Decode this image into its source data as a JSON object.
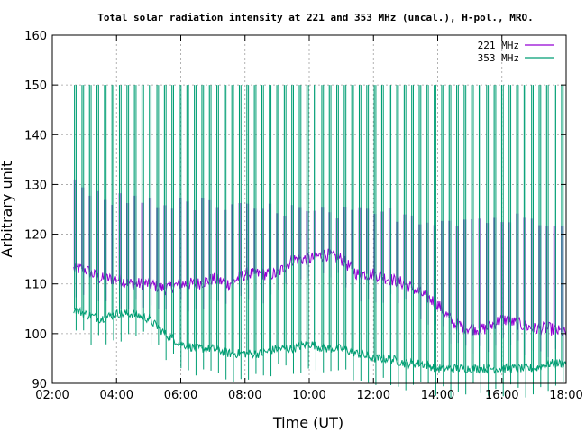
{
  "chart_data": {
    "type": "line",
    "title": "Total solar radiation intensity at 221 and 353 MHz (uncal.), H-pol., MRO.",
    "xlabel": "Time (UT)",
    "ylabel": "Arbitrary unit",
    "xlim": [
      "02:00",
      "18:00"
    ],
    "ylim": [
      90,
      160
    ],
    "x_ticks": [
      "02:00",
      "04:00",
      "06:00",
      "08:00",
      "10:00",
      "12:00",
      "14:00",
      "16:00",
      "18:00"
    ],
    "y_ticks": [
      90,
      100,
      110,
      120,
      130,
      140,
      150,
      160
    ],
    "grid": true,
    "legend_position": "top-right",
    "series": [
      {
        "name": "221 MHz",
        "color": "#9400d3",
        "x": [
          "02:40",
          "03:00",
          "03:30",
          "04:00",
          "04:30",
          "05:00",
          "05:30",
          "06:00",
          "06:30",
          "07:00",
          "07:30",
          "08:00",
          "08:30",
          "09:00",
          "09:30",
          "10:00",
          "10:30",
          "11:00",
          "11:30",
          "12:00",
          "12:30",
          "13:00",
          "13:30",
          "14:00",
          "14:30",
          "15:00",
          "15:30",
          "16:00",
          "16:30",
          "17:00",
          "17:30",
          "18:00"
        ],
        "y": [
          113,
          113,
          111,
          111,
          110,
          110,
          109,
          110,
          110,
          111,
          110,
          112,
          112,
          112,
          115,
          115,
          116,
          115,
          112,
          112,
          111,
          110,
          108,
          106,
          102,
          101,
          101,
          103,
          102,
          101,
          101,
          100
        ],
        "burst_peak": 131,
        "burst_level": [
          129,
          128,
          127,
          127,
          127,
          127,
          126,
          126,
          126,
          126,
          125,
          125,
          125,
          125,
          125,
          124,
          124,
          124,
          124,
          124,
          124,
          124,
          123,
          123,
          123,
          123,
          123,
          123,
          123,
          123,
          123,
          123
        ]
      },
      {
        "name": "353 MHz",
        "color": "#009e73",
        "x": [
          "02:40",
          "03:00",
          "03:30",
          "04:00",
          "04:30",
          "05:00",
          "05:30",
          "06:00",
          "06:30",
          "07:00",
          "07:30",
          "08:00",
          "08:30",
          "09:00",
          "09:30",
          "10:00",
          "10:30",
          "11:00",
          "11:30",
          "12:00",
          "12:30",
          "13:00",
          "13:30",
          "14:00",
          "14:30",
          "15:00",
          "15:30",
          "16:00",
          "16:30",
          "17:00",
          "17:30",
          "18:00"
        ],
        "y": [
          105,
          104,
          103,
          104,
          104,
          103,
          100,
          98,
          97,
          97,
          96,
          96,
          96,
          97,
          97,
          98,
          97,
          97,
          96,
          95,
          95,
          94,
          94,
          93,
          93,
          93,
          93,
          93,
          93,
          93,
          94,
          94
        ],
        "burst_peak": 150
      }
    ]
  }
}
